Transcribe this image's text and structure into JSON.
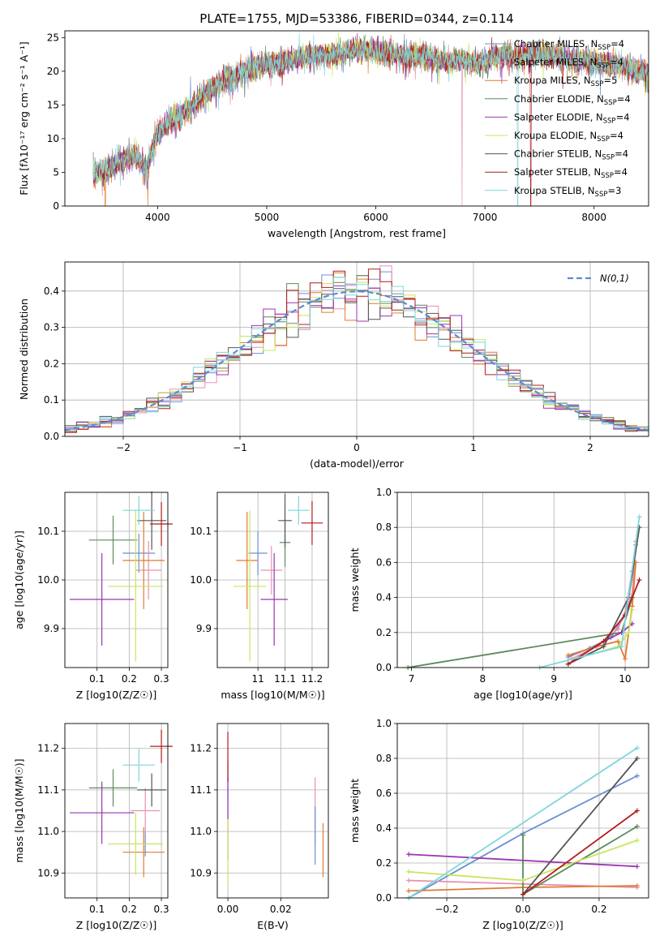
{
  "chart_data": [
    {
      "panel": "spectrum",
      "type": "line",
      "title": "PLATE=1755, MJD=53386, FIBERID=0344, z=0.114",
      "xlabel": "wavelength [Angstrom, rest frame]",
      "ylabel": "Flux [fλ10⁻¹⁷ erg cm⁻² s⁻¹ A⁻¹]",
      "xlim": [
        3150,
        8500
      ],
      "ylim": [
        0,
        26
      ],
      "xticks": [
        4000,
        5000,
        6000,
        7000,
        8000
      ],
      "yticks": [
        0,
        5,
        10,
        15,
        20,
        25
      ],
      "grid": false,
      "legend_position": "right",
      "envelope": {
        "x": [
          3400,
          3500,
          3600,
          3700,
          3800,
          3900,
          4000,
          4100,
          4200,
          4300,
          4400,
          4500,
          4600,
          4700,
          4800,
          4900,
          5000,
          5100,
          5200,
          5300,
          5400,
          5500,
          5600,
          5700,
          5800,
          5900,
          6000,
          6100,
          6200,
          6300,
          6400,
          6500,
          6600,
          6700,
          6800,
          6900,
          7000,
          7100,
          7200,
          7300,
          7400,
          7500,
          7600,
          7700,
          7800,
          7900,
          8000,
          8100,
          8200,
          8300,
          8400,
          8500
        ],
        "y": [
          4.5,
          5.0,
          6.0,
          7.0,
          7.5,
          5.5,
          11.0,
          12.5,
          13.5,
          14.5,
          16.0,
          17.5,
          18.5,
          19.0,
          20.0,
          20.8,
          21.0,
          21.3,
          21.6,
          22.0,
          22.3,
          22.5,
          22.3,
          22.8,
          23.2,
          23.5,
          23.0,
          22.8,
          22.5,
          22.2,
          22.3,
          22.0,
          21.6,
          21.5,
          21.8,
          21.3,
          21.5,
          22.3,
          22.5,
          22.0,
          22.6,
          22.6,
          22.4,
          22.0,
          21.8,
          21.6,
          21.4,
          21.0,
          20.9,
          20.5,
          20.0,
          19.5
        ]
      },
      "series_legend": [
        {
          "name": "Chabrier MILES, N",
          "sub": "SSP",
          "n": "=4",
          "color": "#6a8fd3"
        },
        {
          "name": "Salpeter MILES, N",
          "sub": "SSP",
          "n": "=4",
          "color": "#e691b4"
        },
        {
          "name": "Kroupa MILES, N",
          "sub": "SSP",
          "n": "=5",
          "color": "#e07b32"
        },
        {
          "name": "Chabrier ELODIE, N",
          "sub": "SSP",
          "n": "=4",
          "color": "#5b8a5b"
        },
        {
          "name": "Salpeter ELODIE, N",
          "sub": "SSP",
          "n": "=4",
          "color": "#9b35b0"
        },
        {
          "name": "Kroupa ELODIE, N",
          "sub": "SSP",
          "n": "=4",
          "color": "#c9e55c"
        },
        {
          "name": "Chabrier STELIB, N",
          "sub": "SSP",
          "n": "=4",
          "color": "#555555"
        },
        {
          "name": "Salpeter STELIB, N",
          "sub": "SSP",
          "n": "=4",
          "color": "#b01c1c"
        },
        {
          "name": "Kroupa STELIB, N",
          "sub": "SSP",
          "n": "=3",
          "color": "#7fd6da"
        }
      ]
    },
    {
      "panel": "residuals",
      "type": "line",
      "xlabel": "(data-model)/error",
      "ylabel": "Normed distribution",
      "xlim": [
        -2.5,
        2.5
      ],
      "ylim": [
        0,
        0.48
      ],
      "xticks": [
        -2,
        -1,
        0,
        1,
        2
      ],
      "yticks": [
        0.0,
        0.1,
        0.2,
        0.3,
        0.4
      ],
      "grid": true,
      "legend_position": "top-right",
      "reference": {
        "name": "N(0,1)",
        "color": "#5b8bd8"
      },
      "bins": {
        "start": -2.5,
        "width": 0.1,
        "count": 50
      }
    },
    {
      "panel": "age_vs_Z",
      "type": "scatter",
      "xlabel": "Z [log10(Z/Z☉)]",
      "ylabel": "age  [log10(age/yr)]",
      "xlim": [
        0.0,
        0.32
      ],
      "ylim": [
        9.82,
        10.18
      ],
      "xticks": [
        0.1,
        0.2,
        0.3
      ],
      "yticks": [
        9.9,
        10.0,
        10.1
      ],
      "grid": true,
      "points": [
        {
          "x": 0.23,
          "y": 10.055,
          "xerr": 0.05,
          "yerr": 0.04,
          "color": "#6a8fd3"
        },
        {
          "x": 0.26,
          "y": 10.02,
          "xerr": 0.04,
          "yerr": 0.06,
          "color": "#e691b4"
        },
        {
          "x": 0.245,
          "y": 10.04,
          "xerr": 0.065,
          "yerr": 0.1,
          "color": "#e07b32"
        },
        {
          "x": 0.15,
          "y": 10.082,
          "xerr": 0.075,
          "yerr": 0.05,
          "color": "#5b8a5b"
        },
        {
          "x": 0.115,
          "y": 9.96,
          "xerr": 0.1,
          "yerr": 0.095,
          "color": "#9b35b0"
        },
        {
          "x": 0.22,
          "y": 9.987,
          "xerr": 0.085,
          "yerr": 0.155,
          "color": "#c9e55c"
        },
        {
          "x": 0.27,
          "y": 10.122,
          "xerr": 0.045,
          "yerr": 0.06,
          "color": "#555555"
        },
        {
          "x": 0.3,
          "y": 10.115,
          "xerr": 0.035,
          "yerr": 0.045,
          "color": "#b01c1c"
        },
        {
          "x": 0.23,
          "y": 10.143,
          "xerr": 0.05,
          "yerr": 0.03,
          "color": "#7fd6da"
        }
      ]
    },
    {
      "panel": "age_vs_mass",
      "type": "scatter",
      "xlabel": "mass [log10(M/M☉)]",
      "ylabel": "",
      "xlim": [
        10.85,
        11.26
      ],
      "ylim": [
        9.82,
        10.18
      ],
      "xticks": [
        11.0,
        11.1,
        11.2
      ],
      "yticks": [
        9.9,
        10.0,
        10.1
      ],
      "grid": true,
      "points": [
        {
          "x": 11.0,
          "y": 10.055,
          "xerr": 0.035,
          "yerr": 0.045,
          "color": "#6a8fd3"
        },
        {
          "x": 11.05,
          "y": 10.02,
          "xerr": 0.04,
          "yerr": 0.05,
          "color": "#e691b4"
        },
        {
          "x": 10.96,
          "y": 10.04,
          "xerr": 0.04,
          "yerr": 0.1,
          "color": "#e07b32"
        },
        {
          "x": 11.1,
          "y": 10.077,
          "xerr": 0.02,
          "yerr": 0.05,
          "color": "#5b8a5b"
        },
        {
          "x": 11.06,
          "y": 9.96,
          "xerr": 0.05,
          "yerr": 0.095,
          "color": "#9b35b0"
        },
        {
          "x": 10.97,
          "y": 9.987,
          "xerr": 0.06,
          "yerr": 0.155,
          "color": "#c9e55c"
        },
        {
          "x": 11.1,
          "y": 10.122,
          "xerr": 0.025,
          "yerr": 0.055,
          "color": "#555555"
        },
        {
          "x": 11.2,
          "y": 10.117,
          "xerr": 0.04,
          "yerr": 0.045,
          "color": "#b01c1c"
        },
        {
          "x": 11.15,
          "y": 10.143,
          "xerr": 0.04,
          "yerr": 0.03,
          "color": "#7fd6da"
        }
      ]
    },
    {
      "panel": "massweight_vs_age",
      "type": "line",
      "xlabel": "age  [log10(age/yr)]",
      "ylabel": "mass weight",
      "xlim": [
        6.8,
        10.33
      ],
      "ylim": [
        0,
        1.0
      ],
      "xticks": [
        7,
        8,
        9,
        10
      ],
      "yticks": [
        0.0,
        0.2,
        0.4,
        0.6,
        0.8,
        1.0
      ],
      "grid": true,
      "series": [
        {
          "name": "Chabrier MILES",
          "color": "#6a8fd3",
          "x": [
            9.2,
            9.5,
            9.8,
            10.0,
            10.1,
            10.15
          ],
          "y": [
            0.06,
            0.11,
            0.17,
            0.3,
            0.55,
            0.7
          ]
        },
        {
          "name": "Salpeter MILES",
          "color": "#e691b4",
          "x": [
            9.25,
            9.6,
            9.9,
            10.1,
            10.15
          ],
          "y": [
            0.05,
            0.12,
            0.22,
            0.42,
            0.72
          ]
        },
        {
          "name": "Kroupa MILES",
          "color": "#e07b32",
          "x": [
            9.2,
            9.6,
            9.9,
            10.0,
            10.1,
            10.15
          ],
          "y": [
            0.07,
            0.12,
            0.15,
            0.05,
            0.35,
            0.6
          ]
        },
        {
          "name": "Chabrier ELODIE",
          "color": "#5b8a5b",
          "x": [
            6.95,
            9.95,
            10.1
          ],
          "y": [
            0.0,
            0.2,
            0.4
          ]
        },
        {
          "name": "Salpeter ELODIE",
          "color": "#9b35b0",
          "x": [
            9.2,
            9.7,
            9.95,
            10.1
          ],
          "y": [
            0.02,
            0.15,
            0.2,
            0.25
          ]
        },
        {
          "name": "Kroupa ELODIE",
          "color": "#c9e55c",
          "x": [
            9.3,
            9.9,
            10.05,
            10.1
          ],
          "y": [
            0.05,
            0.12,
            0.2,
            0.33
          ]
        },
        {
          "name": "Chabrier STELIB",
          "color": "#555555",
          "x": [
            9.2,
            9.7,
            10.05,
            10.2
          ],
          "y": [
            0.02,
            0.12,
            0.4,
            0.8
          ]
        },
        {
          "name": "Salpeter STELIB",
          "color": "#b01c1c",
          "x": [
            9.2,
            9.7,
            10.0,
            10.2
          ],
          "y": [
            0.02,
            0.15,
            0.3,
            0.5
          ]
        },
        {
          "name": "Kroupa STELIB",
          "color": "#7fd6da",
          "x": [
            8.8,
            9.95,
            10.2
          ],
          "y": [
            0.0,
            0.12,
            0.86
          ]
        }
      ]
    },
    {
      "panel": "mass_vs_Z",
      "type": "scatter",
      "xlabel": "Z [log10(Z/Z☉)]",
      "ylabel": "mass [log10(M/M☉)]",
      "xlim": [
        0.0,
        0.32
      ],
      "ylim": [
        10.84,
        11.26
      ],
      "xticks": [
        0.1,
        0.2,
        0.3
      ],
      "yticks": [
        10.9,
        11.0,
        11.1,
        11.2
      ],
      "grid": true,
      "points": [
        {
          "x": 0.25,
          "y": 10.97,
          "xerr": 0.05,
          "yerr": 0.03,
          "color": "#6a8fd3"
        },
        {
          "x": 0.25,
          "y": 11.05,
          "xerr": 0.045,
          "yerr": 0.055,
          "color": "#e691b4"
        },
        {
          "x": 0.245,
          "y": 10.95,
          "xerr": 0.065,
          "yerr": 0.06,
          "color": "#e07b32"
        },
        {
          "x": 0.15,
          "y": 11.105,
          "xerr": 0.075,
          "yerr": 0.045,
          "color": "#5b8a5b"
        },
        {
          "x": 0.115,
          "y": 11.045,
          "xerr": 0.1,
          "yerr": 0.075,
          "color": "#9b35b0"
        },
        {
          "x": 0.22,
          "y": 10.97,
          "xerr": 0.085,
          "yerr": 0.075,
          "color": "#c9e55c"
        },
        {
          "x": 0.27,
          "y": 11.1,
          "xerr": 0.045,
          "yerr": 0.04,
          "color": "#555555"
        },
        {
          "x": 0.3,
          "y": 11.205,
          "xerr": 0.035,
          "yerr": 0.04,
          "color": "#b01c1c"
        },
        {
          "x": 0.23,
          "y": 11.16,
          "xerr": 0.05,
          "yerr": 0.04,
          "color": "#7fd6da"
        }
      ]
    },
    {
      "panel": "mass_vs_ebv",
      "type": "scatter",
      "xlabel": "E(B-V)",
      "ylabel": "",
      "xlim": [
        -0.004,
        0.038
      ],
      "ylim": [
        10.84,
        11.26
      ],
      "xticks": [
        0.0,
        0.02
      ],
      "xtick_labels": [
        "0.00",
        "0.02"
      ],
      "yticks": [
        10.9,
        11.0,
        11.1,
        11.2
      ],
      "grid": true,
      "points": [
        {
          "x": 0.0,
          "y": 11.1,
          "yerr": 0.07,
          "color": "#6a8fd3"
        },
        {
          "x": 0.0,
          "y": 11.12,
          "yerr": 0.05,
          "color": "#7fd6da"
        },
        {
          "x": 0.0,
          "y": 11.03,
          "yerr": 0.1,
          "color": "#9b35b0"
        },
        {
          "x": 0.0,
          "y": 10.95,
          "yerr": 0.08,
          "color": "#c9e55c"
        },
        {
          "x": 0.0,
          "y": 11.18,
          "yerr": 0.06,
          "color": "#b01c1c"
        },
        {
          "x": 0.033,
          "y": 11.05,
          "yerr": 0.08,
          "color": "#e691b4"
        },
        {
          "x": 0.033,
          "y": 10.99,
          "yerr": 0.07,
          "color": "#6a8fd3"
        },
        {
          "x": 0.036,
          "y": 10.955,
          "yerr": 0.065,
          "color": "#e07b32"
        }
      ]
    },
    {
      "panel": "massweight_vs_Z",
      "type": "line",
      "xlabel": "Z [log10(Z/Z☉)]",
      "ylabel": "mass weight",
      "xlim": [
        -0.33,
        0.33
      ],
      "ylim": [
        0,
        1.0
      ],
      "xticks": [
        -0.2,
        0.0,
        0.2
      ],
      "xtick_labels": [
        "−0.2",
        "0.0",
        "0.2"
      ],
      "yticks": [
        0.0,
        0.2,
        0.4,
        0.6,
        0.8,
        1.0
      ],
      "grid": true,
      "series": [
        {
          "name": "Chabrier MILES",
          "color": "#6a8fd3",
          "x": [
            -0.3,
            0.0,
            0.3
          ],
          "y": [
            0.0,
            0.37,
            0.7
          ]
        },
        {
          "name": "Salpeter MILES",
          "color": "#e691b4",
          "x": [
            -0.3,
            0.0,
            0.3
          ],
          "y": [
            0.1,
            0.08,
            0.06
          ]
        },
        {
          "name": "Kroupa MILES",
          "color": "#e07b32",
          "x": [
            -0.3,
            0.0,
            0.3
          ],
          "y": [
            0.04,
            0.06,
            0.07
          ]
        },
        {
          "name": "Chabrier ELODIE",
          "color": "#5b8a5b",
          "x": [
            0.0,
            0.0,
            0.3
          ],
          "y": [
            0.36,
            0.02,
            0.41
          ]
        },
        {
          "name": "Salpeter ELODIE",
          "color": "#9b35b0",
          "x": [
            -0.3,
            0.3
          ],
          "y": [
            0.25,
            0.18
          ]
        },
        {
          "name": "Kroupa ELODIE",
          "color": "#c9e55c",
          "x": [
            -0.3,
            0.0,
            0.3
          ],
          "y": [
            0.15,
            0.1,
            0.33
          ]
        },
        {
          "name": "Chabrier STELIB",
          "color": "#555555",
          "x": [
            0.0,
            0.3
          ],
          "y": [
            0.02,
            0.8
          ]
        },
        {
          "name": "Salpeter STELIB",
          "color": "#b01c1c",
          "x": [
            0.0,
            0.3
          ],
          "y": [
            0.02,
            0.5
          ]
        },
        {
          "name": "Kroupa STELIB",
          "color": "#7fd6da",
          "x": [
            -0.3,
            0.3
          ],
          "y": [
            0.0,
            0.86
          ]
        }
      ]
    }
  ]
}
